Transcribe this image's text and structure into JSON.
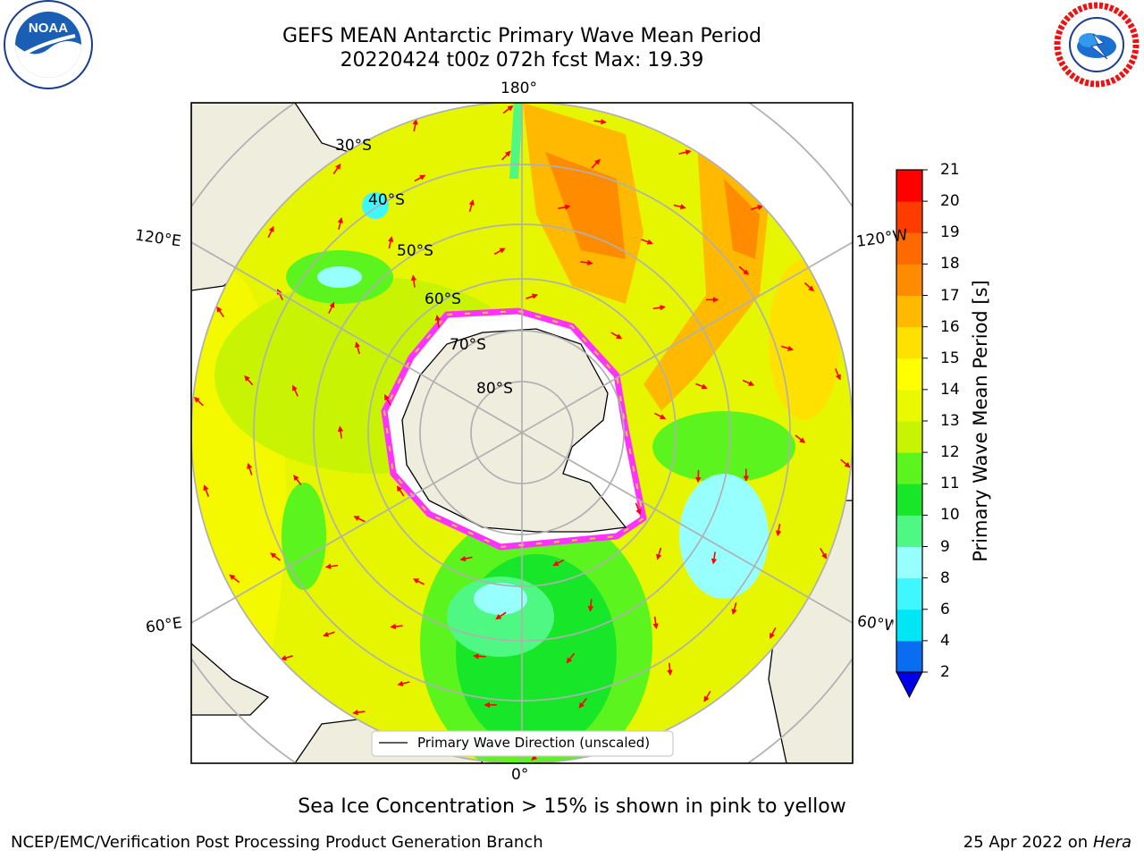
{
  "header": {
    "title_line1": "GEFS MEAN Antarctic Primary Wave Mean Period",
    "title_line2": "20220424 t00z 072h fcst   Max: 19.39"
  },
  "logos": {
    "left": "noaa-logo",
    "right": "nws-logo",
    "nws_ring_text": "NATIONAL WEATHER SERVICE"
  },
  "map": {
    "projection": "south-polar-stereographic",
    "meridian_labels": {
      "top": "180°",
      "bottom": "0°",
      "left_upper": "120°E",
      "left_lower": "60°E",
      "right_upper": "120°W",
      "right_lower": "60°W"
    },
    "parallel_labels": [
      "30°S",
      "40°S",
      "50°S",
      "60°S",
      "70°S",
      "80°S"
    ],
    "legend_label": "Primary Wave Direction (unscaled)",
    "sea_ice_note": "Sea Ice Concentration > 15% is shown in pink to yellow"
  },
  "colorbar": {
    "title": "Primary Wave Mean Period [s]",
    "ticks": [
      "2",
      "4",
      "6",
      "8",
      "9",
      "10",
      "11",
      "12",
      "13",
      "14",
      "15",
      "16",
      "17",
      "18",
      "19",
      "20",
      "21"
    ],
    "colors": [
      "#0a6cf0",
      "#00e6f5",
      "#3ff8ff",
      "#98ffff",
      "#4ff783",
      "#18e628",
      "#5cf41e",
      "#c8f404",
      "#eaf900",
      "#ffff00",
      "#ffe100",
      "#ffba00",
      "#ff8c00",
      "#ff6a00",
      "#ff3c00",
      "#ff0000"
    ],
    "extend_color": "#0000e6"
  },
  "footer": {
    "left": "NCEP/EMC/Verification Post Processing Product Generation Branch",
    "right_date": "25 Apr 2022 on ",
    "right_host": "Hera"
  }
}
